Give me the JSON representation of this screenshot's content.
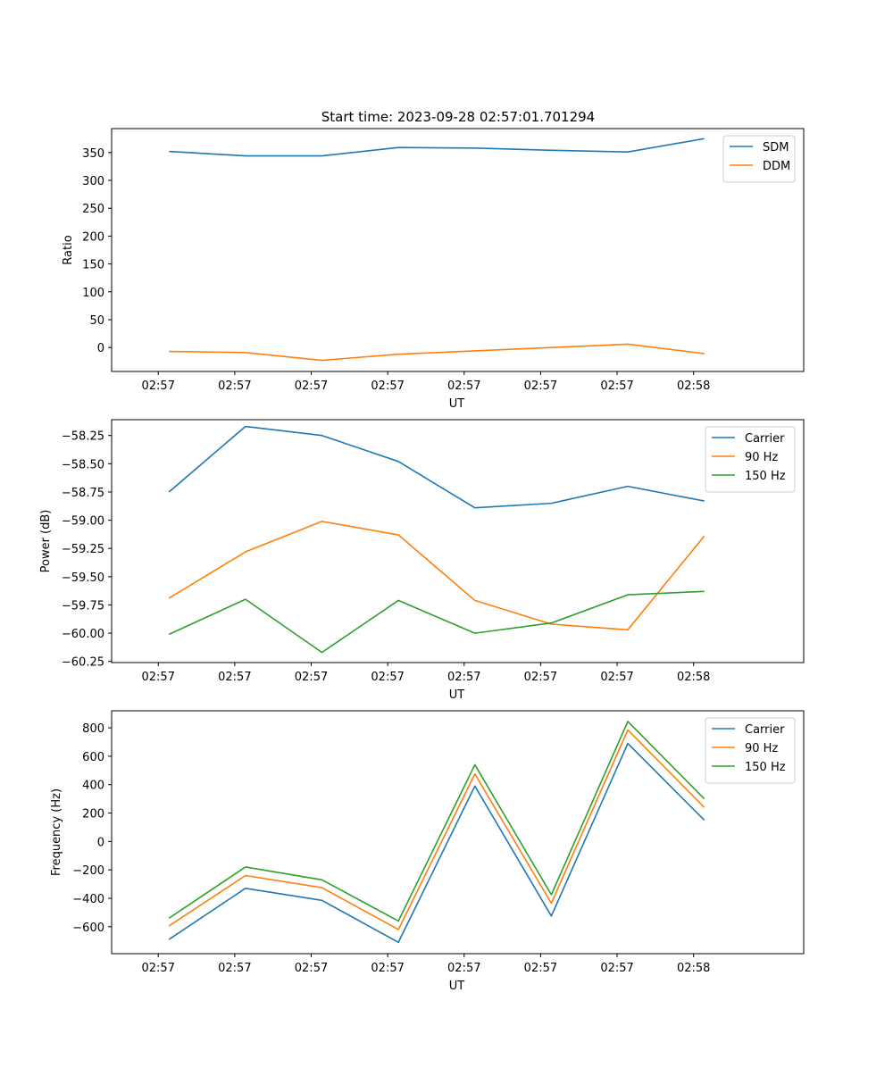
{
  "title": "Start time: 2023-09-28 02:57:01.701294",
  "colors": {
    "blue": "#1f77b4",
    "orange": "#ff7f0e",
    "green": "#2ca02c"
  },
  "chart_data": [
    {
      "type": "line",
      "xlabel": "UT",
      "ylabel": "Ratio",
      "x_tick_labels": [
        "02:57",
        "02:57",
        "02:57",
        "02:57",
        "02:57",
        "02:57",
        "02:57",
        "02:58"
      ],
      "xlim": [
        -0.75,
        8.3
      ],
      "x": [
        0,
        1,
        2,
        3,
        4,
        5,
        6,
        7
      ],
      "ylim": [
        -43,
        393
      ],
      "y_ticks": [
        0,
        50,
        100,
        150,
        200,
        250,
        300,
        350
      ],
      "legend_position": "upper right",
      "series": [
        {
          "name": "SDM",
          "color": "#1f77b4",
          "values": [
            352,
            344,
            344,
            359,
            358,
            354,
            351,
            375
          ]
        },
        {
          "name": "DDM",
          "color": "#ff7f0e",
          "values": [
            -7,
            -9,
            -23,
            -12,
            -6,
            0,
            6,
            -11
          ]
        }
      ]
    },
    {
      "type": "line",
      "xlabel": "UT",
      "ylabel": "Power (dB)",
      "x_tick_labels": [
        "02:57",
        "02:57",
        "02:57",
        "02:57",
        "02:57",
        "02:57",
        "02:57",
        "02:58"
      ],
      "xlim": [
        -0.75,
        8.3
      ],
      "x": [
        0,
        1,
        2,
        3,
        4,
        5,
        6,
        7
      ],
      "ylim": [
        -60.26,
        -58.11
      ],
      "y_ticks": [
        -60.25,
        -60.0,
        -59.75,
        -59.5,
        -59.25,
        -59.0,
        -58.75,
        -58.5,
        -58.25
      ],
      "y_tick_labels": [
        "−60.25",
        "−60.00",
        "−59.75",
        "−59.50",
        "−59.25",
        "−59.00",
        "−58.75",
        "−58.50",
        "−58.25"
      ],
      "legend_position": "upper right",
      "series": [
        {
          "name": "Carrier",
          "color": "#1f77b4",
          "values": [
            -58.75,
            -58.17,
            -58.25,
            -58.48,
            -58.89,
            -58.85,
            -58.7,
            -58.83
          ]
        },
        {
          "name": "90 Hz",
          "color": "#ff7f0e",
          "values": [
            -59.69,
            -59.28,
            -59.01,
            -59.13,
            -59.71,
            -59.92,
            -59.97,
            -59.14
          ]
        },
        {
          "name": "150 Hz",
          "color": "#2ca02c",
          "values": [
            -60.01,
            -59.7,
            -60.17,
            -59.71,
            -60.0,
            -59.91,
            -59.66,
            -59.63
          ]
        }
      ]
    },
    {
      "type": "line",
      "xlabel": "UT",
      "ylabel": "Frequency (Hz)",
      "x_tick_labels": [
        "02:57",
        "02:57",
        "02:57",
        "02:57",
        "02:57",
        "02:57",
        "02:57",
        "02:58"
      ],
      "xlim": [
        -0.75,
        8.3
      ],
      "x": [
        0,
        1,
        2,
        3,
        4,
        5,
        6,
        7
      ],
      "ylim": [
        -790,
        920
      ],
      "y_ticks": [
        -600,
        -400,
        -200,
        0,
        200,
        400,
        600,
        800
      ],
      "y_tick_labels": [
        "−600",
        "−400",
        "−200",
        "0",
        "200",
        "400",
        "600",
        "800"
      ],
      "legend_position": "upper right",
      "series": [
        {
          "name": "Carrier",
          "color": "#1f77b4",
          "values": [
            -690,
            -330,
            -415,
            -710,
            390,
            -525,
            690,
            150
          ]
        },
        {
          "name": "90 Hz",
          "color": "#ff7f0e",
          "values": [
            -595,
            -240,
            -325,
            -620,
            475,
            -435,
            785,
            240
          ]
        },
        {
          "name": "150 Hz",
          "color": "#2ca02c",
          "values": [
            -540,
            -180,
            -270,
            -560,
            540,
            -375,
            845,
            300
          ]
        }
      ]
    }
  ]
}
